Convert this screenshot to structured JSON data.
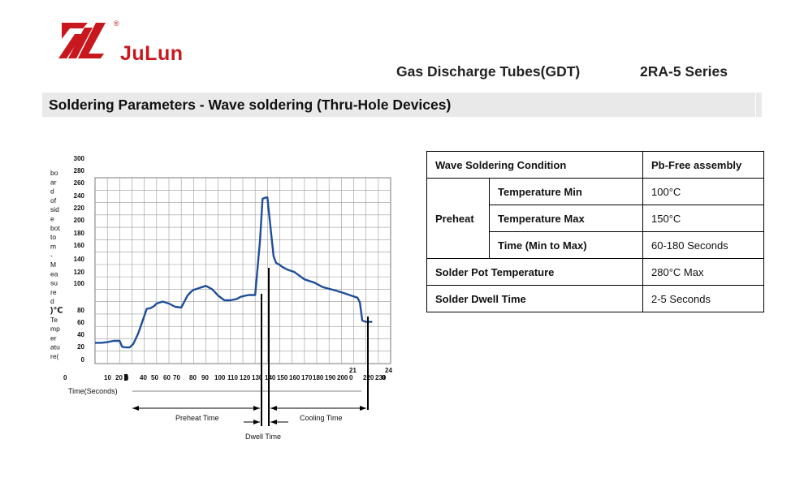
{
  "header": {
    "brand": "JuLun",
    "registered": "®",
    "product": "Gas Discharge Tubes(GDT)",
    "series": "2RA-5 Series",
    "section_title": "Soldering Parameters - Wave soldering (Thru-Hole Devices)"
  },
  "colors": {
    "brand_red": "#c8181e",
    "curve_blue": "#1f4e9a"
  },
  "chart_data": {
    "type": "line",
    "title": "",
    "xlabel": "Time(Seconds)",
    "ylabel_chars": [
      "bo",
      "ar",
      "d",
      "of",
      "sid",
      "e",
      "bot",
      "to",
      "m",
      "-",
      "M",
      "ea",
      "su",
      "re",
      "d",
      ")℃",
      "Te",
      "mp",
      "er",
      "atu",
      "re("
    ],
    "y_ticks": [
      "300",
      "280",
      "260",
      "240",
      "220",
      "200",
      "180",
      "160",
      "140",
      "120",
      "100",
      "80",
      "60",
      "40",
      "20",
      "0"
    ],
    "x_ticks": [
      "0",
      "10",
      "20",
      "3",
      "40",
      "50",
      "60",
      "70",
      "80",
      "90",
      "100",
      "110",
      "120",
      "130",
      "140",
      "150",
      "160",
      "170",
      "180",
      "190",
      "200",
      "21",
      "0",
      "220",
      "230",
      "24",
      "0"
    ],
    "ylim": [
      0,
      300
    ],
    "xlim": [
      0,
      240
    ],
    "grid": true,
    "series": [
      {
        "x": [
          0,
          5,
          10,
          15,
          20,
          22,
          25,
          28,
          31,
          35,
          38,
          42,
          45,
          48,
          50,
          55,
          60,
          65,
          70,
          75,
          78,
          80,
          82,
          85,
          90,
          95,
          100,
          105,
          110,
          115,
          118,
          122,
          125,
          130,
          134,
          136,
          139,
          140,
          141,
          143,
          145,
          147,
          149,
          150,
          152,
          156,
          162,
          170,
          178,
          185,
          195,
          202,
          208,
          213,
          215,
          217,
          220,
          225
        ],
        "values": [
          28,
          28,
          29,
          31,
          31,
          22,
          21,
          21,
          26,
          42,
          58,
          80,
          81,
          84,
          88,
          91,
          88,
          83,
          82,
          100,
          106,
          109,
          110,
          112,
          115,
          110,
          100,
          93,
          93,
          95,
          98,
          100,
          101,
          101,
          185,
          248,
          250,
          250,
          230,
          195,
          160,
          150,
          148,
          147,
          144,
          140,
          136,
          125,
          120,
          113,
          108,
          104,
          100,
          97,
          90,
          62,
          60,
          60
        ]
      }
    ],
    "annotations": {
      "preheat": "Preheat Time",
      "dwell": "Dwell Time",
      "cooling": "Cooling Time"
    }
  },
  "table": {
    "header_left": "Wave Soldering Condition",
    "header_right": "Pb-Free assembly",
    "preheat_label": "Preheat",
    "rows": [
      {
        "label": "Temperature Min",
        "value": "100°C"
      },
      {
        "label": "Temperature Max",
        "value": "150°C"
      },
      {
        "label": "Time (Min to Max)",
        "value": "60-180 Seconds"
      }
    ],
    "solder_pot_label": "Solder Pot Temperature",
    "solder_pot_value": "280°C Max",
    "dwell_label": "Solder Dwell Time",
    "dwell_value": "2-5 Seconds"
  }
}
